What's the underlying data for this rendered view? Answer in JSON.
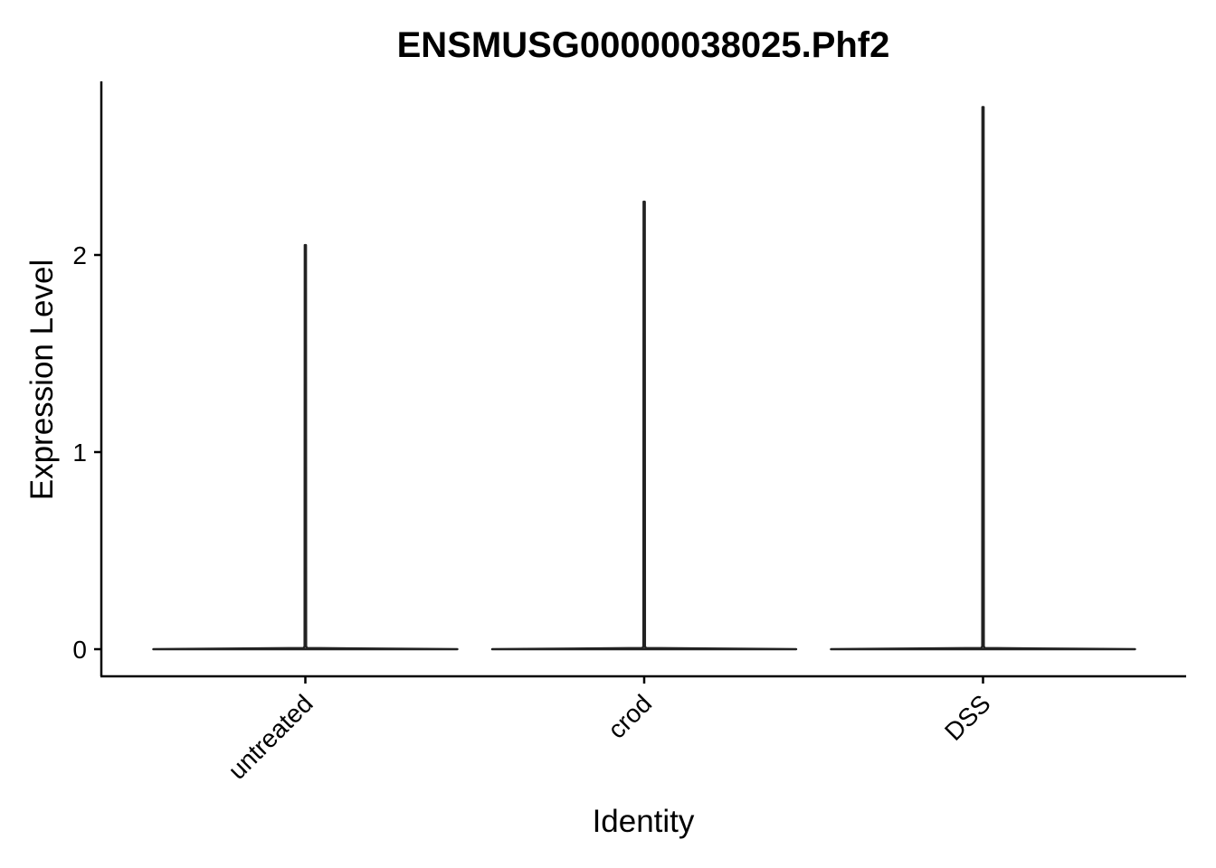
{
  "chart_data": {
    "type": "violin",
    "title": "ENSMUSG00000038025.Phf2",
    "xlabel": "Identity",
    "ylabel": "Expression Level",
    "categories": [
      "untreated",
      "crod",
      "DSS"
    ],
    "series": [
      {
        "category": "untreated",
        "min": 0,
        "max": 2.05
      },
      {
        "category": "crod",
        "min": 0,
        "max": 2.27
      },
      {
        "category": "DSS",
        "min": 0,
        "max": 2.75
      }
    ],
    "yticks": [
      0,
      1,
      2
    ],
    "ylim": [
      -0.07,
      2.88
    ],
    "grid": false,
    "legend": "none"
  }
}
